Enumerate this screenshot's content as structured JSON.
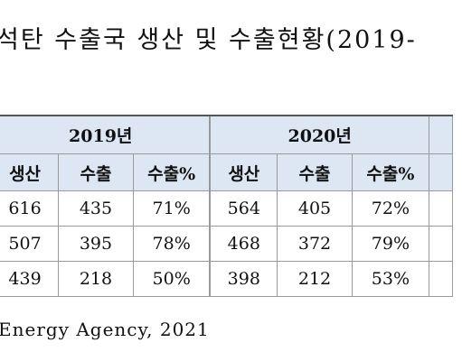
{
  "title": "석탄 수출국 생산 및 수출현황(2019-",
  "table": {
    "years": [
      "2019년",
      "2020년"
    ],
    "columns": [
      "생산",
      "수출",
      "수출%",
      "생산",
      "수출",
      "수출%"
    ],
    "rows": [
      [
        "616",
        "435",
        "71%",
        "564",
        "405",
        "72%"
      ],
      [
        "507",
        "395",
        "78%",
        "468",
        "372",
        "79%"
      ],
      [
        "439",
        "218",
        "50%",
        "398",
        "212",
        "53%"
      ]
    ]
  },
  "source": "Energy Agency, 2021"
}
